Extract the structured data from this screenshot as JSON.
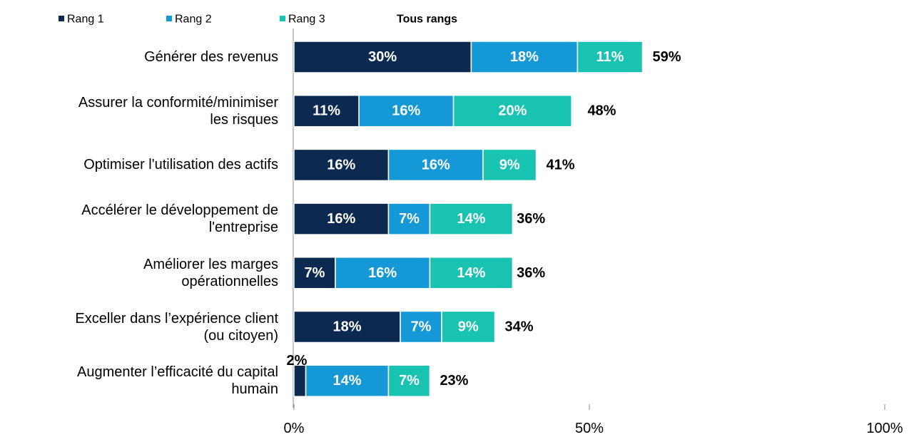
{
  "chart_data": {
    "type": "stacked-bar-horizontal",
    "categories": [
      "Générer des revenus",
      "Assurer la conformité/minimiser\nles risques",
      "Optimiser l'utilisation des actifs",
      "Accélérer le développement de\nl'entreprise",
      "Améliorer les marges\nopérationnelles",
      "Exceller dans l’expérience client\n(ou citoyen)",
      "Augmenter l’efficacité du capital\nhumain"
    ],
    "series": [
      {
        "name": "Rang 1",
        "color": "#0c2a50",
        "values": [
          30,
          11,
          16,
          16,
          7,
          18,
          2
        ],
        "value_labels": [
          "30%",
          "11%",
          "16%",
          "16%",
          "7%",
          "18%",
          "2%"
        ]
      },
      {
        "name": "Rang 2",
        "color": "#1499d6",
        "values": [
          18,
          16,
          16,
          7,
          16,
          7,
          14
        ],
        "value_labels": [
          "18%",
          "16%",
          "16%",
          "7%",
          "16%",
          "7%",
          "14%"
        ]
      },
      {
        "name": "Rang 3",
        "color": "#18c3b1",
        "values": [
          11,
          20,
          9,
          14,
          14,
          9,
          7
        ],
        "value_labels": [
          "11%",
          "20%",
          "9%",
          "14%",
          "14%",
          "9%",
          "7%"
        ]
      }
    ],
    "totals": {
      "name": "Tous rangs",
      "values": [
        59,
        48,
        41,
        36,
        36,
        34,
        23
      ],
      "value_labels": [
        "59%",
        "48%",
        "41%",
        "36%",
        "36%",
        "34%",
        "23%"
      ]
    },
    "xlim": [
      0,
      100
    ],
    "xticks": [
      {
        "value": 0,
        "label": "0%"
      },
      {
        "value": 50,
        "label": "50%"
      },
      {
        "value": 100,
        "label": "100%"
      }
    ]
  }
}
